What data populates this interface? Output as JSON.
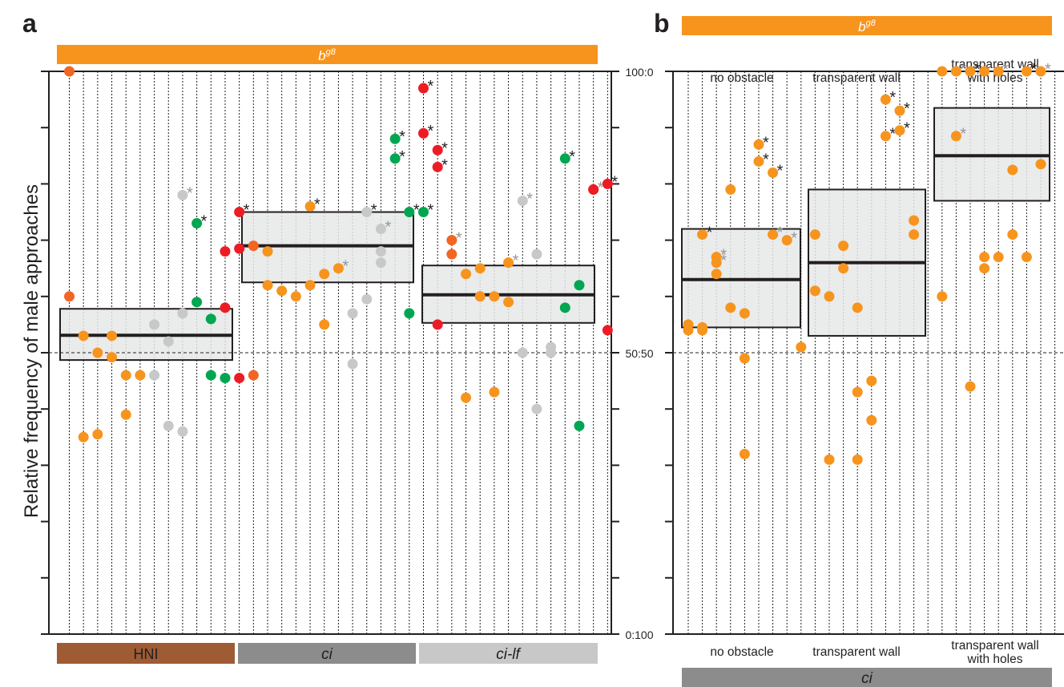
{
  "figure": {
    "ylabel": "Relative frequency of male approaches",
    "y_ticks": [
      "100:0",
      "50:50",
      "0:100"
    ]
  },
  "colors": {
    "orange": "#f7941d",
    "dark_orange": "#f26522",
    "red": "#ed1c24",
    "green": "#00a651",
    "grey": "#c7c8ca",
    "box_fill": "#e6e7e8",
    "brown": "#9e5b34",
    "mid_grey": "#8c8c8c",
    "light_grey": "#c8c8c8",
    "star_black": "#231f20",
    "star_grey": "#939598"
  },
  "panel_a": {
    "letter": "a",
    "top_bar": {
      "base": "b",
      "sup": "g8"
    },
    "groups": [
      {
        "label": "HNI",
        "italic": false
      },
      {
        "label": "ci",
        "italic": true
      },
      {
        "label": "ci-lf",
        "italic": true
      }
    ]
  },
  "panel_b": {
    "letter": "b",
    "top_bar": {
      "base": "b",
      "sup": "g8"
    },
    "bottom_bar": {
      "label": "ci"
    },
    "conditions_top": [
      "no obstacle",
      "transparent wall",
      "transparent wall",
      "with holes"
    ],
    "conditions_bottom": [
      "no obstacle",
      "transparent wall",
      "transparent wall",
      "with holes"
    ]
  },
  "chart_data": [
    {
      "panel": "a",
      "type": "scatter",
      "title": "",
      "xlabel": "",
      "ylabel": "Relative frequency of male approaches",
      "ylim": [
        0,
        100
      ],
      "y_axis_labels": {
        "100": "100:0",
        "50": "50:50",
        "0": "0:100"
      },
      "reference_line": 50,
      "columns": 39,
      "groups": [
        {
          "name": "HNI",
          "columns": [
            1,
            12
          ],
          "box": {
            "q1": 48.7,
            "median": 53.1,
            "q3": 57.8
          }
        },
        {
          "name": "ci",
          "columns": [
            14,
            26
          ],
          "box": {
            "q1": 62.5,
            "median": 69.0,
            "q3": 75.0
          }
        },
        {
          "name": "ci-lf",
          "columns": [
            27,
            39
          ],
          "box": {
            "q1": 55.3,
            "median": 60.3,
            "q3": 65.5
          }
        }
      ],
      "points": [
        {
          "col": 1,
          "y": 100,
          "color": "dark_orange"
        },
        {
          "col": 1,
          "y": 60,
          "color": "dark_orange"
        },
        {
          "col": 2,
          "y": 53,
          "color": "orange"
        },
        {
          "col": 2,
          "y": 35,
          "color": "orange"
        },
        {
          "col": 3,
          "y": 50,
          "color": "orange"
        },
        {
          "col": 3,
          "y": 35.5,
          "color": "orange"
        },
        {
          "col": 4,
          "y": 53,
          "color": "orange"
        },
        {
          "col": 4,
          "y": 49.2,
          "color": "orange"
        },
        {
          "col": 5,
          "y": 46,
          "color": "orange"
        },
        {
          "col": 5,
          "y": 39,
          "color": "orange"
        },
        {
          "col": 6,
          "y": 46,
          "color": "orange"
        },
        {
          "col": 7,
          "y": 55,
          "color": "grey"
        },
        {
          "col": 7,
          "y": 46,
          "color": "grey"
        },
        {
          "col": 8,
          "y": 52,
          "color": "grey"
        },
        {
          "col": 8,
          "y": 37,
          "color": "grey"
        },
        {
          "col": 9,
          "y": 78,
          "color": "grey",
          "star": "grey"
        },
        {
          "col": 9,
          "y": 57,
          "color": "grey"
        },
        {
          "col": 9,
          "y": 36,
          "color": "grey"
        },
        {
          "col": 10,
          "y": 73,
          "color": "green",
          "star": "black"
        },
        {
          "col": 10,
          "y": 59,
          "color": "green"
        },
        {
          "col": 11,
          "y": 56,
          "color": "green"
        },
        {
          "col": 11,
          "y": 46,
          "color": "green"
        },
        {
          "col": 12,
          "y": 45.5,
          "color": "green"
        },
        {
          "col": 12,
          "y": 68,
          "color": "red"
        },
        {
          "col": 12,
          "y": 58,
          "color": "red"
        },
        {
          "col": 13,
          "y": 75,
          "color": "red",
          "star": "black"
        },
        {
          "col": 13,
          "y": 68.5,
          "color": "red"
        },
        {
          "col": 13,
          "y": 45.5,
          "color": "red"
        },
        {
          "col": 14,
          "y": 69,
          "color": "dark_orange"
        },
        {
          "col": 14,
          "y": 46,
          "color": "dark_orange"
        },
        {
          "col": 15,
          "y": 68,
          "color": "orange"
        },
        {
          "col": 15,
          "y": 62,
          "color": "orange"
        },
        {
          "col": 16,
          "y": 61,
          "color": "orange"
        },
        {
          "col": 17,
          "y": 60,
          "color": "orange"
        },
        {
          "col": 18,
          "y": 76,
          "color": "orange",
          "star": "black"
        },
        {
          "col": 18,
          "y": 62,
          "color": "orange"
        },
        {
          "col": 19,
          "y": 64,
          "color": "orange"
        },
        {
          "col": 19,
          "y": 55,
          "color": "orange"
        },
        {
          "col": 20,
          "y": 65,
          "color": "orange",
          "star": "grey"
        },
        {
          "col": 21,
          "y": 57,
          "color": "grey"
        },
        {
          "col": 21,
          "y": 48,
          "color": "grey"
        },
        {
          "col": 22,
          "y": 75,
          "color": "grey",
          "star": "black"
        },
        {
          "col": 22,
          "y": 59.5,
          "color": "grey"
        },
        {
          "col": 23,
          "y": 72,
          "color": "grey",
          "star": "grey"
        },
        {
          "col": 23,
          "y": 68,
          "color": "grey"
        },
        {
          "col": 23,
          "y": 66,
          "color": "grey"
        },
        {
          "col": 24,
          "y": 88,
          "color": "green",
          "star": "black"
        },
        {
          "col": 24,
          "y": 84.5,
          "color": "green",
          "star": "black"
        },
        {
          "col": 25,
          "y": 75,
          "color": "green",
          "star": "black"
        },
        {
          "col": 25,
          "y": 57,
          "color": "green"
        },
        {
          "col": 26,
          "y": 75,
          "color": "green",
          "star": "black"
        },
        {
          "col": 26,
          "y": 97,
          "color": "red",
          "star": "black"
        },
        {
          "col": 26,
          "y": 89,
          "color": "red",
          "star": "black"
        },
        {
          "col": 27,
          "y": 86,
          "color": "red",
          "star": "black"
        },
        {
          "col": 27,
          "y": 83,
          "color": "red",
          "star": "black"
        },
        {
          "col": 27,
          "y": 55,
          "color": "red"
        },
        {
          "col": 28,
          "y": 70,
          "color": "dark_orange",
          "star": "grey"
        },
        {
          "col": 28,
          "y": 67.5,
          "color": "dark_orange"
        },
        {
          "col": 29,
          "y": 64,
          "color": "orange"
        },
        {
          "col": 29,
          "y": 42,
          "color": "orange"
        },
        {
          "col": 30,
          "y": 65,
          "color": "orange"
        },
        {
          "col": 30,
          "y": 60,
          "color": "orange"
        },
        {
          "col": 31,
          "y": 60,
          "color": "orange"
        },
        {
          "col": 31,
          "y": 43,
          "color": "orange"
        },
        {
          "col": 32,
          "y": 66,
          "color": "orange",
          "star": "grey"
        },
        {
          "col": 32,
          "y": 59,
          "color": "orange"
        },
        {
          "col": 33,
          "y": 77,
          "color": "grey",
          "star": "grey"
        },
        {
          "col": 33,
          "y": 50,
          "color": "grey"
        },
        {
          "col": 34,
          "y": 67.5,
          "color": "grey"
        },
        {
          "col": 34,
          "y": 40,
          "color": "grey"
        },
        {
          "col": 35,
          "y": 51,
          "color": "grey"
        },
        {
          "col": 35,
          "y": 50,
          "color": "grey"
        },
        {
          "col": 36,
          "y": 84.5,
          "color": "green",
          "star": "black"
        },
        {
          "col": 36,
          "y": 58,
          "color": "green"
        },
        {
          "col": 37,
          "y": 62,
          "color": "green"
        },
        {
          "col": 37,
          "y": 37,
          "color": "green"
        },
        {
          "col": 38,
          "y": 79,
          "color": "red",
          "star": "grey"
        },
        {
          "col": 38,
          "y": 79,
          "color": "red"
        },
        {
          "col": 39,
          "y": 80,
          "color": "red",
          "star": "black"
        },
        {
          "col": 39,
          "y": 54,
          "color": "red"
        }
      ]
    },
    {
      "panel": "b",
      "type": "scatter",
      "title": "",
      "xlabel": "",
      "ylabel": "",
      "ylim": [
        0,
        100
      ],
      "reference_line": 50,
      "columns": 27,
      "groups": [
        {
          "name": "no obstacle",
          "columns": [
            1,
            9
          ],
          "box": {
            "q1": 54.5,
            "median": 63.0,
            "q3": 72.0
          }
        },
        {
          "name": "transparent wall",
          "columns": [
            10,
            18
          ],
          "box": {
            "q1": 53.0,
            "median": 66.0,
            "q3": 79.0
          }
        },
        {
          "name": "transparent wall with holes",
          "columns": [
            19,
            27
          ],
          "box": {
            "q1": 77.0,
            "median": 85.0,
            "q3": 93.5
          }
        }
      ],
      "points": [
        {
          "col": 1,
          "y": 55,
          "color": "orange"
        },
        {
          "col": 1,
          "y": 54,
          "color": "orange"
        },
        {
          "col": 2,
          "y": 54,
          "color": "orange"
        },
        {
          "col": 2,
          "y": 54.5,
          "color": "orange"
        },
        {
          "col": 2,
          "y": 71,
          "color": "orange",
          "star": "black"
        },
        {
          "col": 3,
          "y": 66,
          "color": "orange",
          "star": "grey"
        },
        {
          "col": 3,
          "y": 67,
          "color": "orange",
          "star": "grey"
        },
        {
          "col": 3,
          "y": 64,
          "color": "orange"
        },
        {
          "col": 4,
          "y": 79,
          "color": "orange"
        },
        {
          "col": 4,
          "y": 58,
          "color": "orange"
        },
        {
          "col": 5,
          "y": 57,
          "color": "orange"
        },
        {
          "col": 5,
          "y": 49,
          "color": "orange"
        },
        {
          "col": 5,
          "y": 32,
          "color": "orange"
        },
        {
          "col": 6,
          "y": 87,
          "color": "orange",
          "star": "black"
        },
        {
          "col": 6,
          "y": 84,
          "color": "orange",
          "star": "black"
        },
        {
          "col": 7,
          "y": 82,
          "color": "orange",
          "star": "black"
        },
        {
          "col": 7,
          "y": 71,
          "color": "orange",
          "star": "grey"
        },
        {
          "col": 8,
          "y": 70,
          "color": "orange",
          "star": "grey"
        },
        {
          "col": 9,
          "y": 51,
          "color": "orange"
        },
        {
          "col": 10,
          "y": 71,
          "color": "orange"
        },
        {
          "col": 10,
          "y": 61,
          "color": "orange"
        },
        {
          "col": 11,
          "y": 60,
          "color": "orange"
        },
        {
          "col": 11,
          "y": 31,
          "color": "orange"
        },
        {
          "col": 12,
          "y": 69,
          "color": "orange"
        },
        {
          "col": 12,
          "y": 65,
          "color": "orange"
        },
        {
          "col": 13,
          "y": 58,
          "color": "orange"
        },
        {
          "col": 13,
          "y": 43,
          "color": "orange"
        },
        {
          "col": 13,
          "y": 31,
          "color": "orange"
        },
        {
          "col": 14,
          "y": 45,
          "color": "orange"
        },
        {
          "col": 14,
          "y": 38,
          "color": "orange"
        },
        {
          "col": 15,
          "y": 95,
          "color": "orange",
          "star": "black"
        },
        {
          "col": 15,
          "y": 88.5,
          "color": "orange",
          "star": "black"
        },
        {
          "col": 16,
          "y": 93,
          "color": "orange",
          "star": "black"
        },
        {
          "col": 16,
          "y": 89.5,
          "color": "orange",
          "star": "black"
        },
        {
          "col": 17,
          "y": 73.5,
          "color": "orange"
        },
        {
          "col": 17,
          "y": 71,
          "color": "orange"
        },
        {
          "col": 19,
          "y": 100,
          "color": "orange"
        },
        {
          "col": 19,
          "y": 60,
          "color": "orange"
        },
        {
          "col": 20,
          "y": 100,
          "color": "orange",
          "star": "grey"
        },
        {
          "col": 20,
          "y": 88.5,
          "color": "orange",
          "star": "grey"
        },
        {
          "col": 21,
          "y": 100,
          "color": "orange",
          "star": "black"
        },
        {
          "col": 21,
          "y": 44,
          "color": "orange"
        },
        {
          "col": 22,
          "y": 100,
          "color": "orange"
        },
        {
          "col": 22,
          "y": 65,
          "color": "orange"
        },
        {
          "col": 22,
          "y": 67,
          "color": "orange"
        },
        {
          "col": 23,
          "y": 100,
          "color": "orange",
          "star": "grey"
        },
        {
          "col": 23,
          "y": 67,
          "color": "orange"
        },
        {
          "col": 24,
          "y": 71,
          "color": "orange"
        },
        {
          "col": 24,
          "y": 82.5,
          "color": "orange"
        },
        {
          "col": 25,
          "y": 100,
          "color": "orange",
          "star": "black"
        },
        {
          "col": 25,
          "y": 67,
          "color": "orange"
        },
        {
          "col": 26,
          "y": 100,
          "color": "orange",
          "star": "grey"
        },
        {
          "col": 26,
          "y": 83.5,
          "color": "orange"
        }
      ]
    }
  ]
}
